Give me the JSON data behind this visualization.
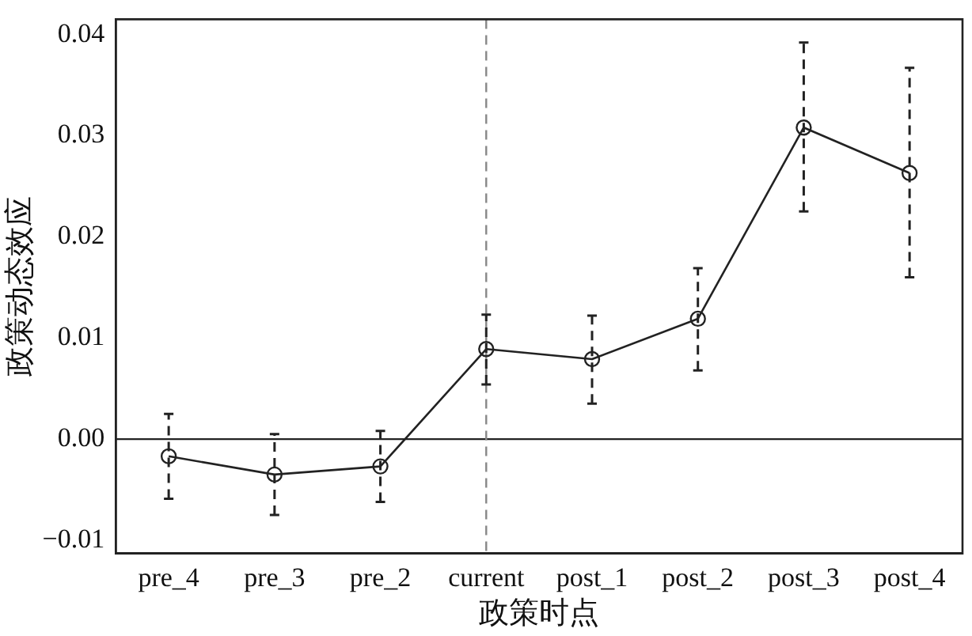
{
  "chart_data": {
    "type": "line",
    "xlabel": "政策时点",
    "ylabel": "政策动态效应",
    "categories": [
      "pre_4",
      "pre_3",
      "pre_2",
      "current",
      "post_1",
      "post_2",
      "post_3",
      "post_4"
    ],
    "series": [
      {
        "color": "#222222",
        "values": [
          -0.0017,
          -0.0035,
          -0.0027,
          0.0089,
          0.0079,
          0.0119,
          0.0308,
          0.0263
        ],
        "errors": [
          [
            -0.0059,
            0.0025
          ],
          [
            -0.0075,
            0.0005
          ],
          [
            -0.0062,
            0.0008
          ],
          [
            0.0054,
            0.0123
          ],
          [
            0.0035,
            0.0122
          ],
          [
            0.0068,
            0.0169
          ],
          [
            0.0225,
            0.0392
          ],
          [
            0.016,
            0.0367
          ]
        ]
      }
    ],
    "ylim": [
      -0.0113,
      0.0415
    ],
    "yticks": [
      {
        "value": -0.01,
        "label": "−0.01"
      },
      {
        "value": 0,
        "label": "0.00"
      },
      {
        "value": 0.01,
        "label": "0.01"
      },
      {
        "value": 0.02,
        "label": "0.02"
      },
      {
        "value": 0.03,
        "label": "0.03"
      },
      {
        "value": 0.04,
        "label": "0.04"
      }
    ],
    "ref_lines": [
      {
        "axis": "y",
        "value": 0,
        "color": "#222222",
        "line_style": "solid"
      },
      {
        "axis": "x",
        "value": "current",
        "color": "#888888",
        "line_style": "dashed"
      }
    ],
    "grid": false,
    "legend": false,
    "marker": "circle",
    "line_style": "solid"
  }
}
